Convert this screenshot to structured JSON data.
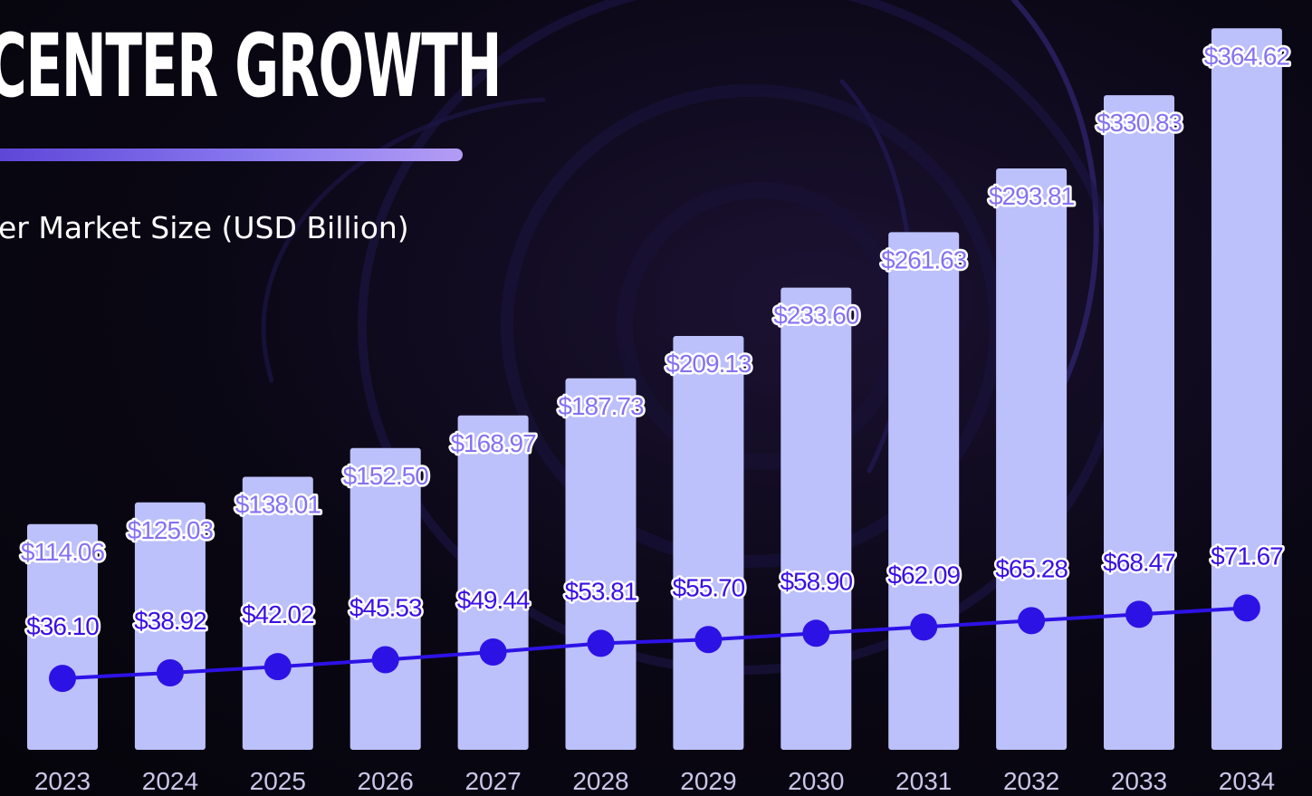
{
  "title": "CENTER GROWTH",
  "subtitle": "er Market Size (USD Billion)",
  "colors": {
    "bar": "#bcc0fb",
    "line": "#2d12e6",
    "bar_label": "#8572f2",
    "line_label": "#3a10e6",
    "accent_start": "#5b43d6",
    "accent_end": "#b39cf5"
  },
  "chart_data": {
    "type": "bar",
    "categories": [
      "2023",
      "2024",
      "2025",
      "2026",
      "2027",
      "2028",
      "2029",
      "2030",
      "2031",
      "2032",
      "2033",
      "2034"
    ],
    "series": [
      {
        "type": "bar",
        "values": [
          114.06,
          125.03,
          138.01,
          152.5,
          168.97,
          187.73,
          209.13,
          233.6,
          261.63,
          293.81,
          330.83,
          364.62
        ],
        "labels": [
          "$114.06",
          "$125.03",
          "$138.01",
          "$152.50",
          "$168.97",
          "$187.73",
          "$209.13",
          "$233.60",
          "$261.63",
          "$293.81",
          "$330.83",
          "$364.62"
        ]
      },
      {
        "type": "line",
        "values": [
          36.1,
          38.92,
          42.02,
          45.53,
          49.44,
          53.81,
          55.7,
          58.9,
          62.09,
          65.28,
          68.47,
          71.67
        ],
        "labels": [
          "$36.10",
          "$38.92",
          "$42.02",
          "$45.53",
          "$49.44",
          "$53.81",
          "$55.70",
          "$58.90",
          "$62.09",
          "$65.28",
          "$68.47",
          "$71.67"
        ]
      }
    ],
    "grid": false,
    "legend": "none",
    "ylim": [
      0,
      370
    ]
  }
}
